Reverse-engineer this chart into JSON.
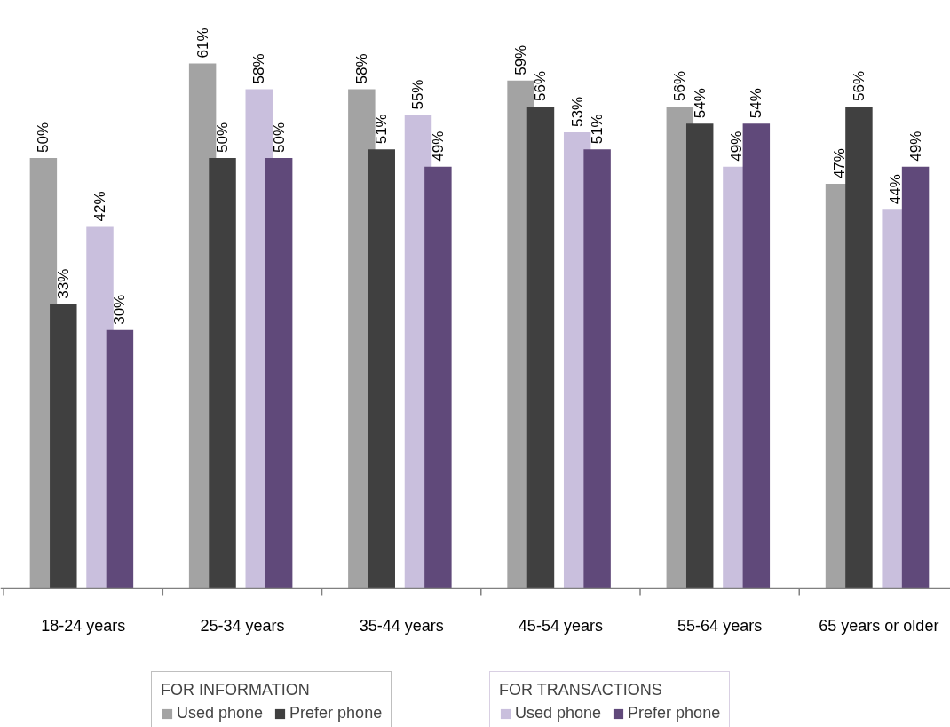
{
  "chart_data": {
    "type": "bar",
    "categories": [
      "18-24 years",
      "25-34 years",
      "35-44 years",
      "45-54 years",
      "55-64 years",
      "65 years or older"
    ],
    "series": [
      {
        "name": "Used phone",
        "color": "#a3a3a3",
        "values": [
          50,
          61,
          58,
          59,
          56,
          47
        ],
        "value_labels": [
          "50%",
          "61%",
          "58%",
          "59%",
          "56%",
          "47%"
        ]
      },
      {
        "name": "Prefer phone",
        "color": "#404040",
        "values": [
          33,
          50,
          51,
          56,
          54,
          56
        ],
        "value_labels": [
          "33%",
          "50%",
          "51%",
          "56%",
          "54%",
          "56%"
        ]
      },
      {
        "name": "Used phone",
        "color": "#c9bfdd",
        "values": [
          42,
          58,
          55,
          53,
          49,
          44
        ],
        "value_labels": [
          "42%",
          "58%",
          "55%",
          "53%",
          "49%",
          "44%"
        ]
      },
      {
        "name": "Prefer phone",
        "color": "#60497a",
        "values": [
          30,
          50,
          49,
          51,
          54,
          49
        ],
        "value_labels": [
          "30%",
          "50%",
          "49%",
          "51%",
          "54%",
          "49%"
        ]
      }
    ],
    "annotations": [
      "FOR INFORMATION",
      "FOR TRANSACTIONS"
    ],
    "legend": "bottom",
    "grid": false
  }
}
